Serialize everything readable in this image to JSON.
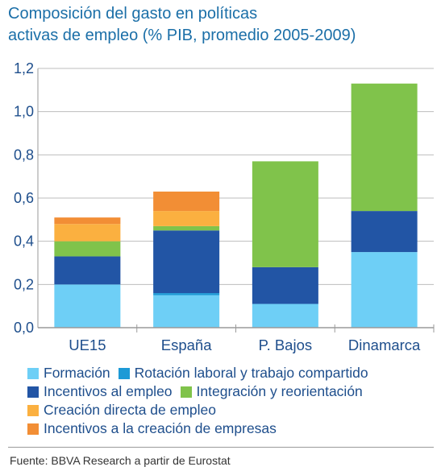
{
  "title": {
    "line1": "Composición del gasto en políticas",
    "line2": "activas de empleo (% PIB, promedio 2005-2009)"
  },
  "chart_data": {
    "type": "bar",
    "stacked": true,
    "categories": [
      "UE15",
      "España",
      "P. Bajos",
      "Dinamarca"
    ],
    "ylim": [
      0,
      1.2
    ],
    "yticks": [
      "0,0",
      "0,2",
      "0,4",
      "0,6",
      "0,8",
      "1,0",
      "1,2"
    ],
    "grid": true,
    "legend_position": "bottom",
    "series": [
      {
        "name": "Formación",
        "color": "#6ecff6",
        "values": [
          0.2,
          0.15,
          0.11,
          0.35
        ]
      },
      {
        "name": "Rotación laboral y trabajo compartido",
        "color": "#1d9ad6",
        "values": [
          0.0,
          0.01,
          0.0,
          0.0
        ]
      },
      {
        "name": "Incentivos al empleo",
        "color": "#2255a5",
        "values": [
          0.13,
          0.29,
          0.17,
          0.19
        ]
      },
      {
        "name": "Integración y reorientación",
        "color": "#80c34b",
        "values": [
          0.07,
          0.02,
          0.49,
          0.59
        ]
      },
      {
        "name": "Creación directa de empleo",
        "color": "#fbb040",
        "values": [
          0.08,
          0.07,
          0.0,
          0.0
        ]
      },
      {
        "name": "Incentivos a la creación de empresas",
        "color": "#f28e35",
        "values": [
          0.03,
          0.09,
          0.0,
          0.0
        ]
      }
    ]
  },
  "source": "Fuente: BBVA Research a partir de Eurostat"
}
